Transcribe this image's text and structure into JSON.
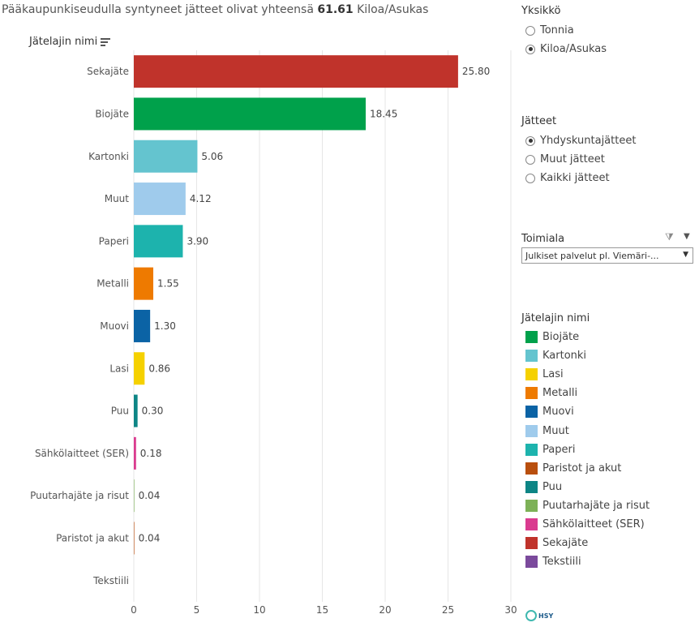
{
  "header": {
    "subtitle_prefix": "Pääkaupunkiseudulla syntyneet jätteet olivat yhteensä",
    "total": "61.61",
    "unit": "Kiloa/Asukas",
    "field_label": "Jätelajin nimi"
  },
  "unit_panel": {
    "title": "Yksikkö",
    "options": [
      {
        "label": "Tonnia",
        "checked": false
      },
      {
        "label": "Kiloa/Asukas",
        "checked": true
      }
    ]
  },
  "waste_panel": {
    "title": "Jätteet",
    "options": [
      {
        "label": "Yhdyskuntajätteet",
        "checked": true
      },
      {
        "label": "Muut jätteet",
        "checked": false
      },
      {
        "label": "Kaikki jätteet",
        "checked": false
      }
    ]
  },
  "industry_panel": {
    "title": "Toimiala",
    "selected": "Julkiset palvelut pl. Viemäri-..."
  },
  "legend": {
    "title": "Jätelajin nimi",
    "items": [
      {
        "label": "Biojäte",
        "color": "#00a14b"
      },
      {
        "label": "Kartonki",
        "color": "#64c4cf"
      },
      {
        "label": "Lasi",
        "color": "#f5d100"
      },
      {
        "label": "Metalli",
        "color": "#ee7a00"
      },
      {
        "label": "Muovi",
        "color": "#0b63a5"
      },
      {
        "label": "Muut",
        "color": "#9fcbec"
      },
      {
        "label": "Paperi",
        "color": "#1db3ad"
      },
      {
        "label": "Paristot ja akut",
        "color": "#b94f0e"
      },
      {
        "label": "Puu",
        "color": "#0d8585"
      },
      {
        "label": "Puutarhajäte ja risut",
        "color": "#7db157"
      },
      {
        "label": "Sähkölaitteet (SER)",
        "color": "#da3b8f"
      },
      {
        "label": "Sekajäte",
        "color": "#c0332b"
      },
      {
        "label": "Tekstiili",
        "color": "#7b4a9c"
      }
    ]
  },
  "logo_text": "HSY",
  "chart_data": {
    "type": "bar",
    "orientation": "horizontal",
    "categories": [
      "Sekajäte",
      "Biojäte",
      "Kartonki",
      "Muut",
      "Paperi",
      "Metalli",
      "Muovi",
      "Lasi",
      "Puu",
      "Sähkölaitteet (SER)",
      "Puutarhajäte ja risut",
      "Paristot ja akut",
      "Tekstiili"
    ],
    "values": [
      25.8,
      18.45,
      5.06,
      4.12,
      3.9,
      1.55,
      1.3,
      0.86,
      0.3,
      0.18,
      0.04,
      0.04,
      0
    ],
    "value_labels": [
      "25.80",
      "18.45",
      "5.06",
      "4.12",
      "3.90",
      "1.55",
      "1.30",
      "0.86",
      "0.30",
      "0.18",
      "0.04",
      "0.04",
      ""
    ],
    "colors": [
      "#c0332b",
      "#00a14b",
      "#64c4cf",
      "#9fcbec",
      "#1db3ad",
      "#ee7a00",
      "#0b63a5",
      "#f5d100",
      "#0d8585",
      "#da3b8f",
      "#7db157",
      "#b94f0e",
      "#7b4a9c"
    ],
    "xlim": [
      0,
      30
    ],
    "xticks": [
      "0",
      "5",
      "10",
      "15",
      "20",
      "25",
      "30"
    ],
    "grid": true
  }
}
